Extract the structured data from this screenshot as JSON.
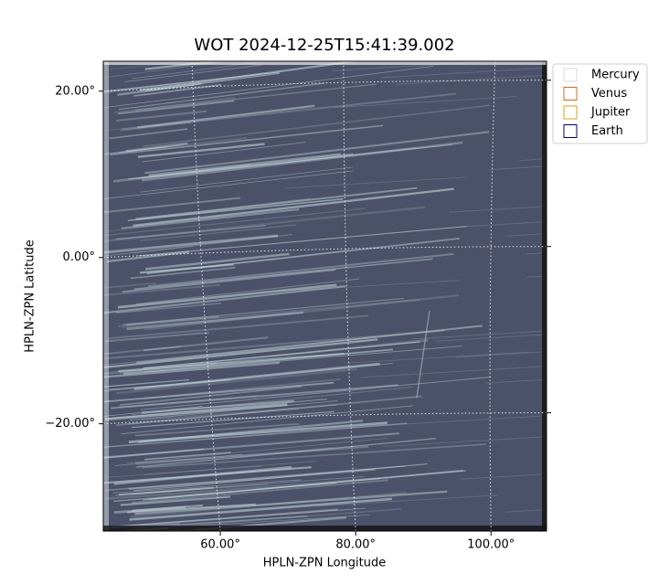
{
  "chart_data": {
    "type": "image",
    "title": "WOT 2024-12-25T15:41:39.002",
    "x_label": "HPLN-ZPN Longitude",
    "y_label": "HPLN-ZPN Latitude",
    "xlim": [
      42.7,
      108.2
    ],
    "ylim": [
      -32.9,
      23.6
    ],
    "xticks": [
      {
        "value": 60,
        "label": "60.00°"
      },
      {
        "value": 80,
        "label": "80.00°"
      },
      {
        "value": 100,
        "label": "100.00°"
      }
    ],
    "yticks": [
      {
        "value": 20,
        "label": "20.00°"
      },
      {
        "value": 0,
        "label": "0.00°"
      },
      {
        "value": -20,
        "label": "−20.00°"
      }
    ],
    "grid": true,
    "legend_position": "upper right outside",
    "legend": [
      {
        "name": "Mercury",
        "color": "#d9d9d9"
      },
      {
        "name": "Venus",
        "color": "#d2691e"
      },
      {
        "name": "Jupiter",
        "color": "#e0a010"
      },
      {
        "name": "Earth",
        "color": "#000080"
      }
    ]
  }
}
